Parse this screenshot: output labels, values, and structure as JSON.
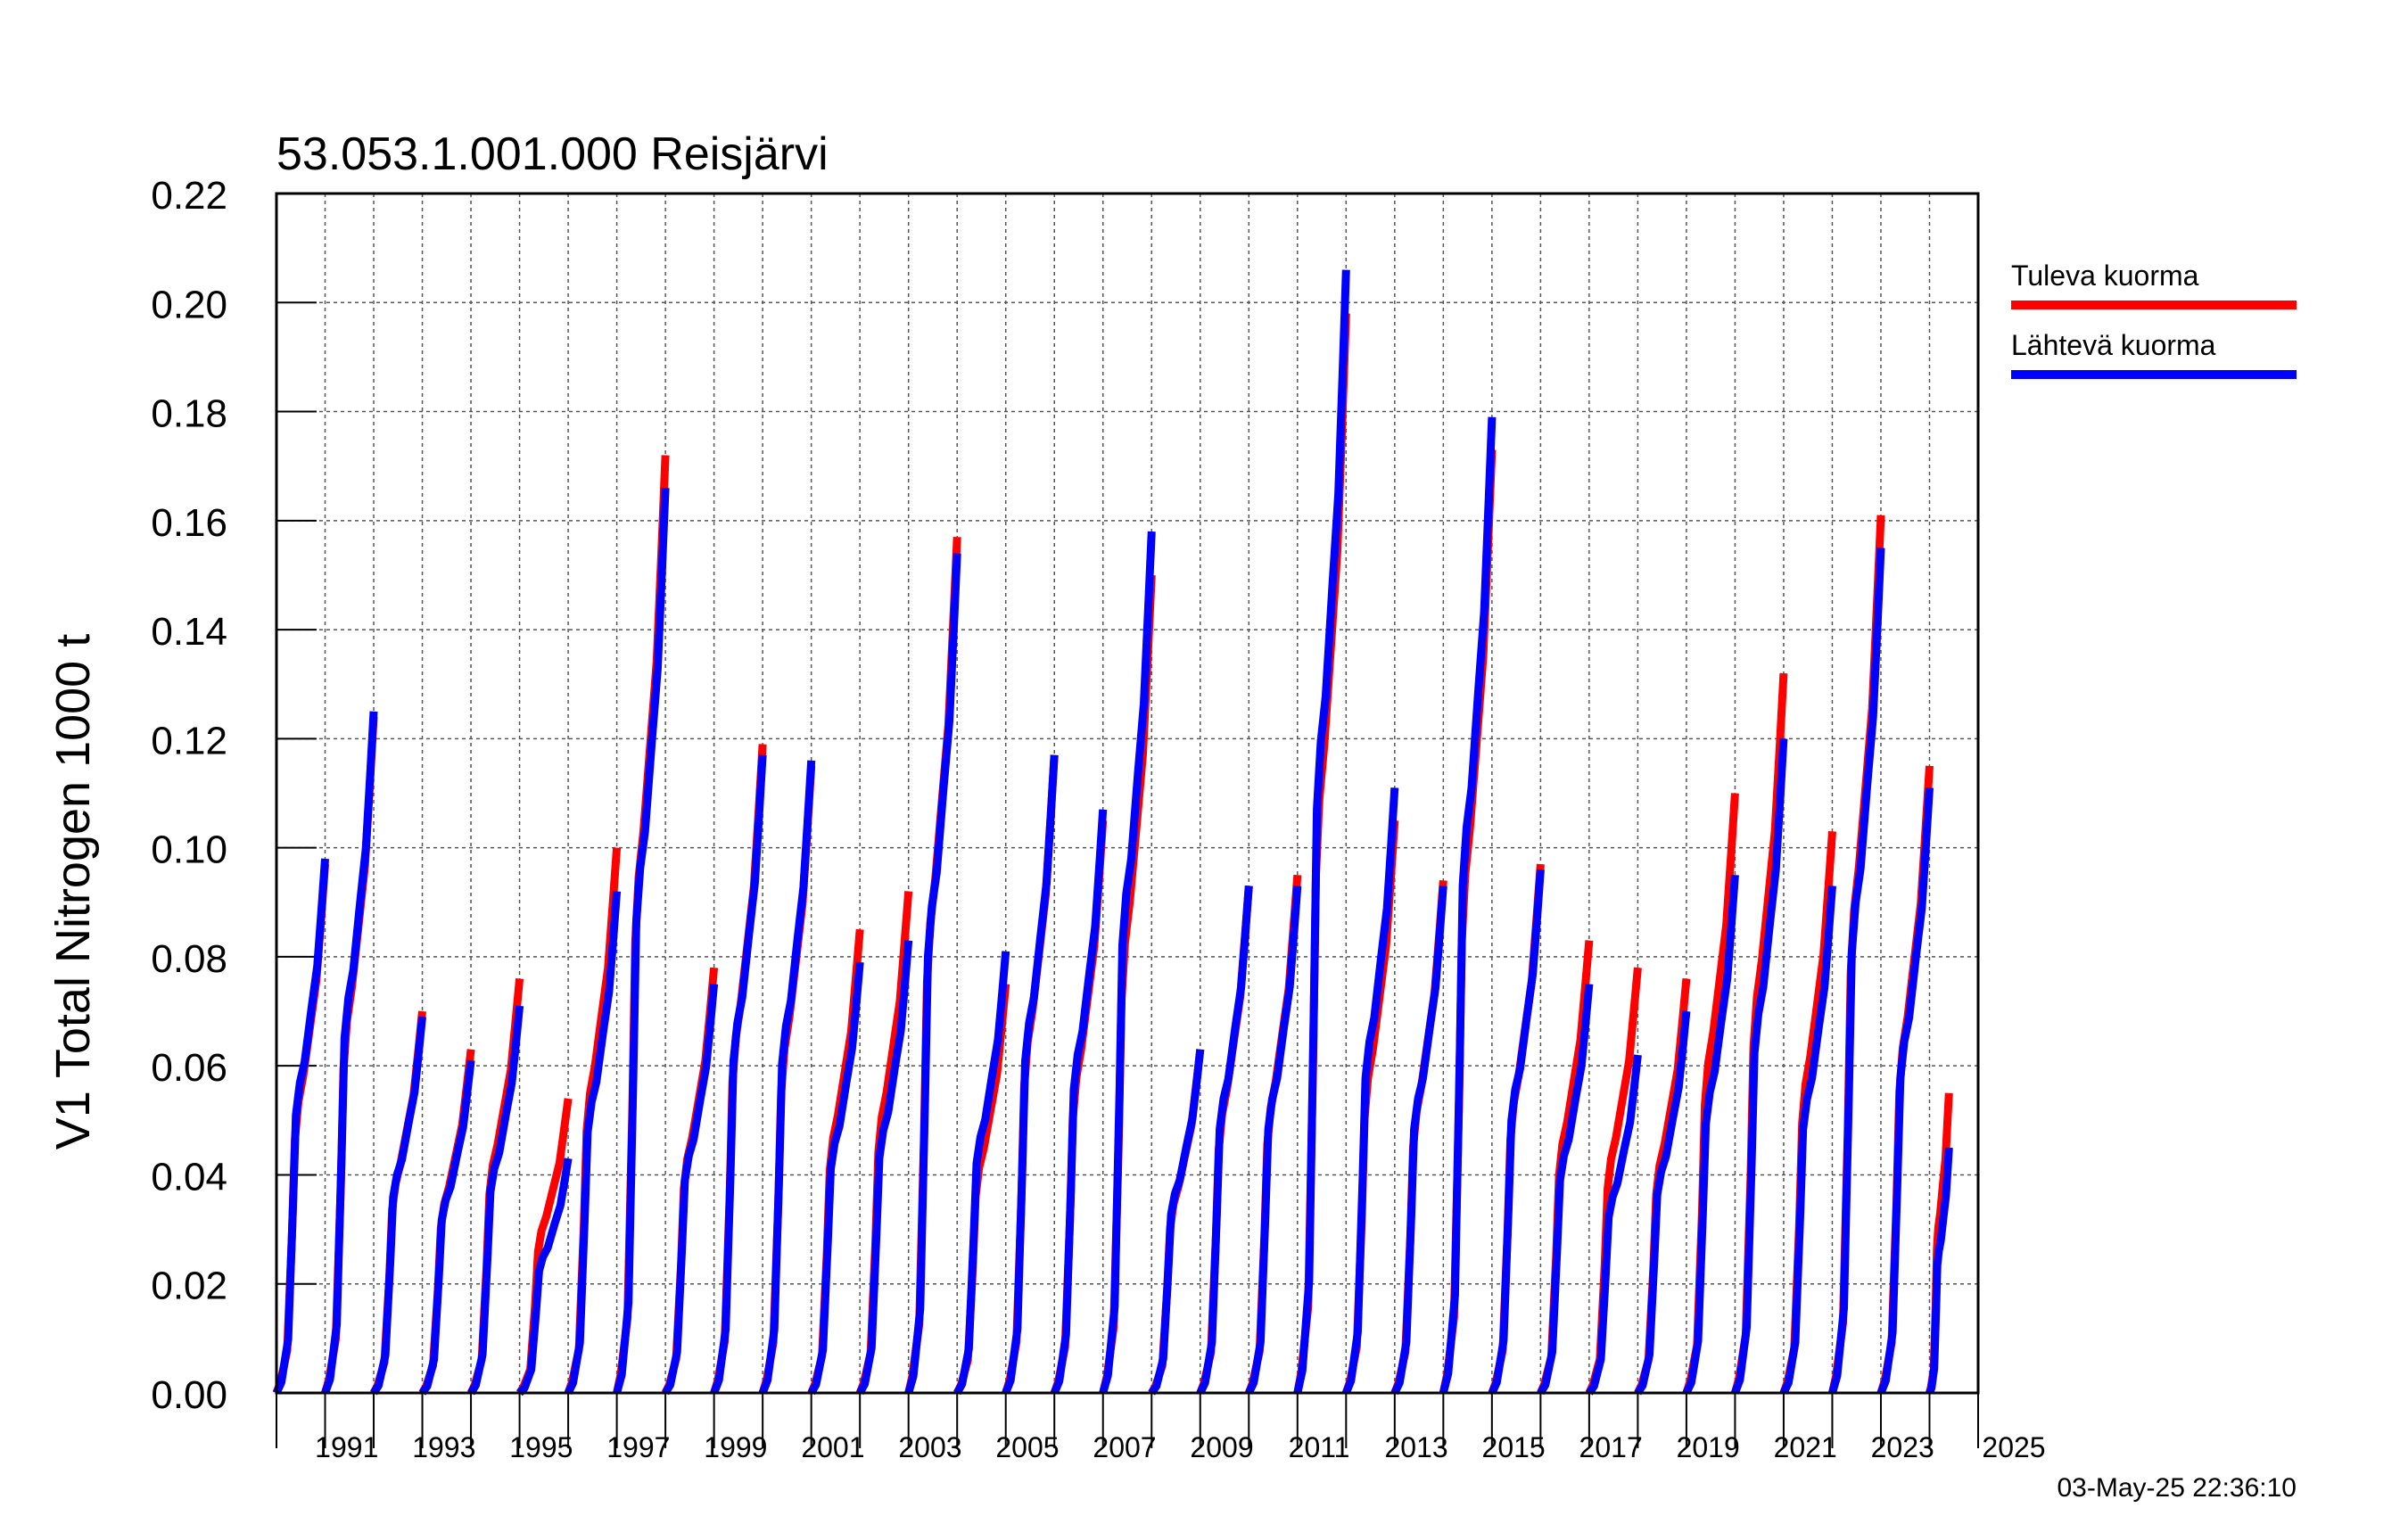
{
  "chart_data": {
    "type": "line",
    "title": "53.053.1.001.000 Reisjärvi",
    "ylabel": "V1 Total Nitrogen 1000 t",
    "xlabel": "",
    "ylim": [
      0,
      0.22
    ],
    "xlim": [
      1990,
      2025.0
    ],
    "y_ticks": [
      "0.00",
      "0.02",
      "0.04",
      "0.06",
      "0.08",
      "0.10",
      "0.12",
      "0.14",
      "0.16",
      "0.18",
      "0.20",
      "0.22"
    ],
    "x_tick_labels": [
      "1991",
      "1993",
      "1995",
      "1997",
      "1999",
      "2001",
      "2003",
      "2005",
      "2007",
      "2009",
      "2011",
      "2013",
      "2015",
      "2017",
      "2019",
      "2021",
      "2023",
      "2025"
    ],
    "grid": true,
    "legend_position": "right",
    "timestamp": "03-May-25 22:36:10",
    "series": [
      {
        "name": "Tuleva kuorma",
        "color": "#ff0000",
        "annual_totals": [
          0.097,
          0.124,
          0.07,
          0.063,
          0.076,
          0.054,
          0.1,
          0.172,
          0.078,
          0.119,
          0.115,
          0.085,
          0.092,
          0.157,
          0.075,
          0.117,
          0.105,
          0.15,
          0.063,
          0.093,
          0.095,
          0.198,
          0.105,
          0.094,
          0.173,
          0.097,
          0.083,
          0.078,
          0.076,
          0.11,
          0.132,
          0.103,
          0.161,
          0.115,
          0.055
        ],
        "profile": [
          [
            0,
            0
          ],
          [
            0.08,
            0.02
          ],
          [
            0.22,
            0.08
          ],
          [
            0.32,
            0.3
          ],
          [
            0.38,
            0.48
          ],
          [
            0.45,
            0.55
          ],
          [
            0.55,
            0.6
          ],
          [
            0.7,
            0.7
          ],
          [
            0.82,
            0.78
          ],
          [
            0.92,
            0.9
          ],
          [
            1.0,
            1.0
          ]
        ]
      },
      {
        "name": "Lähtevä kuorma",
        "color": "#0000ff",
        "annual_totals": [
          0.098,
          0.125,
          0.069,
          0.061,
          0.071,
          0.043,
          0.092,
          0.166,
          0.075,
          0.117,
          0.116,
          0.079,
          0.083,
          0.154,
          0.081,
          0.117,
          0.107,
          0.158,
          0.063,
          0.093,
          0.093,
          0.206,
          0.111,
          0.093,
          0.179,
          0.096,
          0.075,
          0.062,
          0.07,
          0.095,
          0.12,
          0.093,
          0.155,
          0.111,
          0.045
        ],
        "profile": [
          [
            0,
            0
          ],
          [
            0.1,
            0.02
          ],
          [
            0.24,
            0.1
          ],
          [
            0.34,
            0.35
          ],
          [
            0.4,
            0.52
          ],
          [
            0.48,
            0.58
          ],
          [
            0.58,
            0.62
          ],
          [
            0.72,
            0.72
          ],
          [
            0.84,
            0.8
          ],
          [
            0.93,
            0.91
          ],
          [
            1.0,
            1.0
          ]
        ]
      }
    ]
  }
}
